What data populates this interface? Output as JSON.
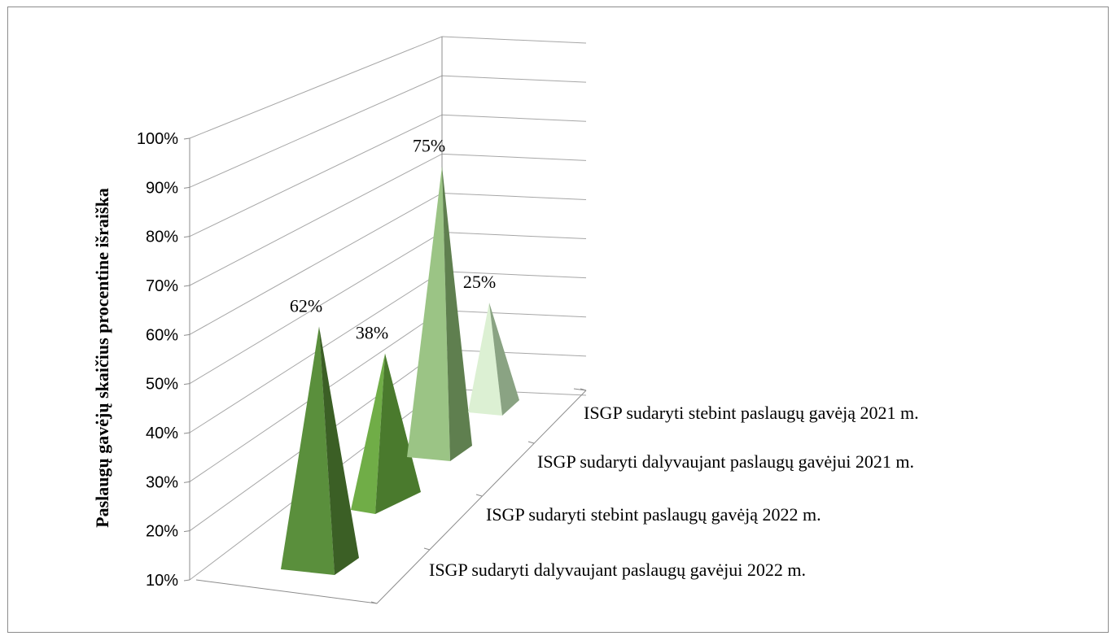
{
  "chart_data": {
    "type": "bar",
    "subtype": "3d-pyramid",
    "title": "",
    "ylabel": "Paslaugų gavėjų skaičius procentine išraiška",
    "xlabel": "",
    "ylim": [
      10,
      100
    ],
    "yticks": [
      "10%",
      "20%",
      "30%",
      "40%",
      "50%",
      "60%",
      "70%",
      "80%",
      "90%",
      "100%"
    ],
    "grid": true,
    "legend": "none",
    "categories": [
      "ISGP sudaryti dalyvaujant paslaugų gavėjui 2022 m.",
      "ISGP sudaryti stebint paslaugų gavėją 2022 m.",
      "ISGP sudaryti dalyvaujant paslaugų gavėjui 2021 m.",
      "ISGP sudaryti stebint paslaugų gavėją 2021 m."
    ],
    "values": [
      62,
      38,
      75,
      25
    ],
    "data_labels": [
      "62%",
      "38%",
      "75%",
      "25%"
    ],
    "colors": [
      {
        "front": "#5a8f3c",
        "side": "#3b5f25"
      },
      {
        "front": "#70ad47",
        "side": "#4a7a2d"
      },
      {
        "front": "#9bc485",
        "side": "#5f7f4f"
      },
      {
        "front": "#dcf0d3",
        "side": "#8aa383"
      }
    ]
  }
}
